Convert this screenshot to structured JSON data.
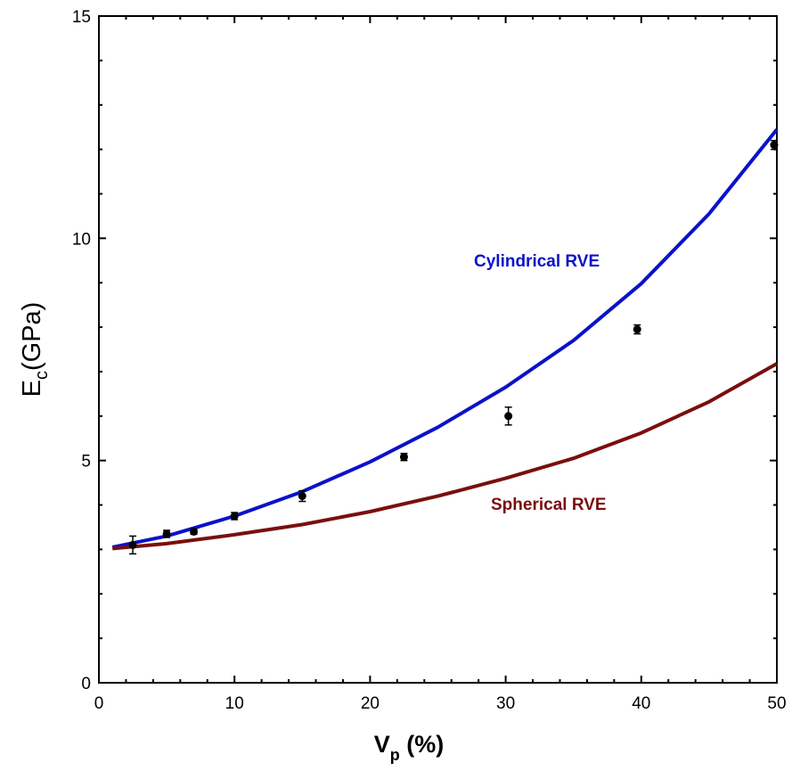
{
  "chart_data": {
    "type": "line",
    "xlabel": {
      "main": "V",
      "sub": "p",
      "suffix": " (%)"
    },
    "ylabel": {
      "main": "E",
      "sub": "c",
      "suffix": "(GPa)"
    },
    "xlim": [
      0,
      50
    ],
    "ylim": [
      0,
      15
    ],
    "x_ticks": [
      0,
      10,
      20,
      30,
      40,
      50
    ],
    "y_ticks": [
      0,
      5,
      10,
      15
    ],
    "x_minor_step": 2,
    "y_minor_step": 1,
    "grid": false,
    "series": [
      {
        "name": "Cylindrical RVE",
        "color": "#0a12c8",
        "x": [
          1,
          5,
          10,
          15,
          20,
          25,
          30,
          35,
          40,
          45,
          50
        ],
        "y": [
          3.05,
          3.3,
          3.75,
          4.3,
          4.97,
          5.75,
          6.65,
          7.7,
          8.98,
          10.55,
          12.45
        ]
      },
      {
        "name": "Spherical RVE",
        "color": "#7a0e0e",
        "x": [
          1,
          5,
          10,
          15,
          20,
          25,
          30,
          35,
          40,
          45,
          50
        ],
        "y": [
          3.02,
          3.13,
          3.33,
          3.56,
          3.85,
          4.2,
          4.6,
          5.05,
          5.62,
          6.32,
          7.18
        ]
      }
    ],
    "experimental": {
      "color": "#000000",
      "x": [
        2.5,
        5,
        7,
        10,
        15,
        22.5,
        30.2,
        39.7,
        49.8
      ],
      "y": [
        3.1,
        3.35,
        3.4,
        3.75,
        4.2,
        5.08,
        6.0,
        7.95,
        12.1
      ],
      "err": [
        0.2,
        0.08,
        0.06,
        0.08,
        0.12,
        0.08,
        0.2,
        0.1,
        0.1
      ]
    },
    "annotations": [
      {
        "text": "Cylindrical RVE",
        "color": "#0a12c8"
      },
      {
        "text": "Spherical RVE",
        "color": "#7a0e0e"
      }
    ]
  }
}
